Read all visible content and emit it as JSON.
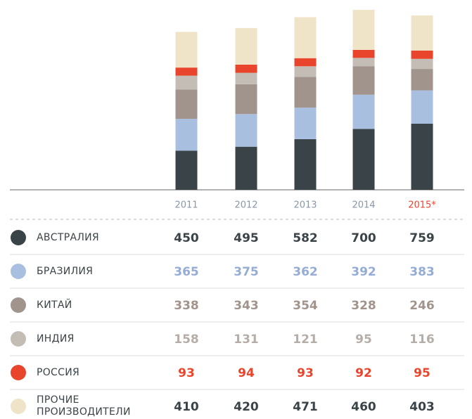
{
  "chart_data": {
    "type": "stacked_bar",
    "categories": [
      "2011",
      "2012",
      "2013",
      "2014",
      "2015*"
    ],
    "series": [
      {
        "name": "АВСТРАЛИЯ",
        "color": "#3a4347",
        "label_color": "#3a4347",
        "values": [
          450,
          495,
          582,
          700,
          759
        ]
      },
      {
        "name": "БРАЗИЛИЯ",
        "color": "#a9bfe0",
        "label_color": "#94acd6",
        "values": [
          365,
          375,
          362,
          392,
          383
        ]
      },
      {
        "name": "КИТАЙ",
        "color": "#a0948c",
        "label_color": "#a0948c",
        "values": [
          338,
          343,
          354,
          328,
          246
        ]
      },
      {
        "name": "ИНДИЯ",
        "color": "#c4bdb6",
        "label_color": "#b5aea8",
        "values": [
          158,
          131,
          121,
          95,
          116
        ]
      },
      {
        "name": "РОССИЯ",
        "color": "#e8452c",
        "label_color": "#e8452c",
        "values": [
          93,
          94,
          93,
          92,
          95
        ]
      },
      {
        "name": "ПРОЧИЕ ПРОИЗВОДИТЕЛИ",
        "color": "#efe4c8",
        "label_color": "#3a4347",
        "values": [
          410,
          420,
          471,
          460,
          403
        ]
      }
    ]
  }
}
